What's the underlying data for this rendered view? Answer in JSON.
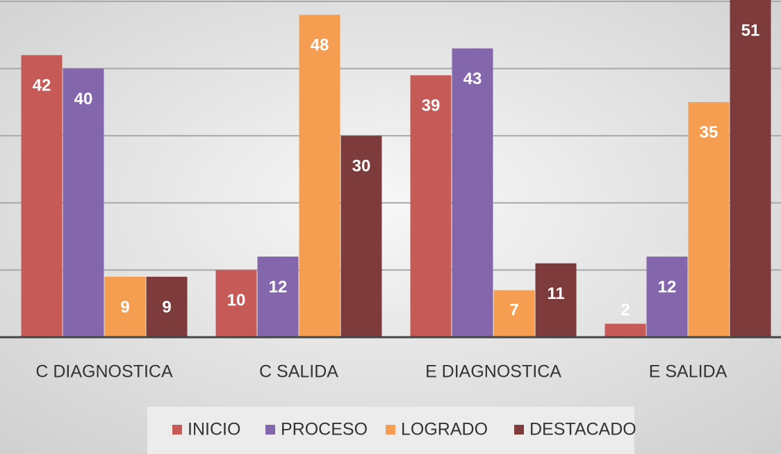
{
  "chart_data": {
    "type": "bar",
    "categories": [
      "C DIAGNOSTICA",
      "C SALIDA",
      "E DIAGNOSTICA",
      "E SALIDA"
    ],
    "series": [
      {
        "name": "INICIO",
        "color": "#c55a57",
        "values": [
          42,
          10,
          39,
          2
        ]
      },
      {
        "name": "PROCESO",
        "color": "#8466ad",
        "values": [
          40,
          12,
          43,
          12
        ]
      },
      {
        "name": "LOGRADO",
        "color": "#f59d50",
        "values": [
          9,
          48,
          7,
          35
        ]
      },
      {
        "name": "DESTACADO",
        "color": "#7e3b3b",
        "values": [
          9,
          30,
          11,
          51
        ]
      }
    ],
    "ylim": [
      0,
      50
    ],
    "yticks": [
      0,
      10,
      20,
      30,
      40,
      50
    ],
    "grid": true,
    "legend": "bottom"
  }
}
